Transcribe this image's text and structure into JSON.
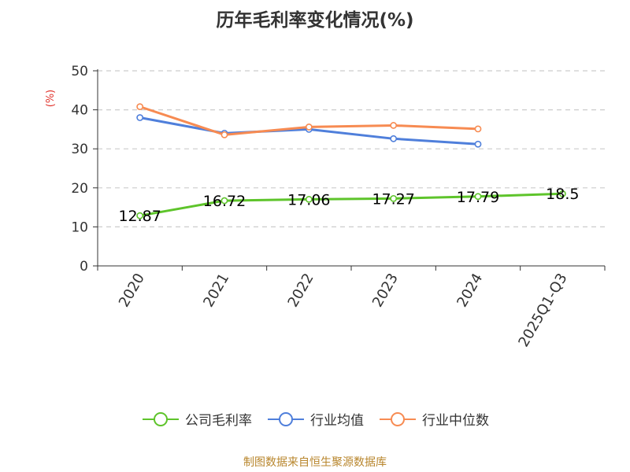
{
  "chart_data": {
    "type": "line",
    "title": "历年毛利率变化情况(%)",
    "ylabel": "(%)",
    "xlabel": "",
    "categories": [
      "2020",
      "2021",
      "2022",
      "2023",
      "2024",
      "2025Q1-Q3"
    ],
    "ylim": [
      0,
      50
    ],
    "yticks": [
      0,
      10,
      20,
      30,
      40,
      50
    ],
    "grid": true,
    "legend_position": "bottom",
    "series": [
      {
        "name": "公司毛利率",
        "color": "#5ec42b",
        "values": [
          12.87,
          16.72,
          17.06,
          17.27,
          17.79,
          18.5
        ],
        "data_labels": [
          "12.87",
          "16.72",
          "17.06",
          "17.27",
          "17.79",
          "18.5"
        ]
      },
      {
        "name": "行业均值",
        "color": "#4f7fdb",
        "values": [
          38.0,
          34.0,
          35.0,
          32.6,
          31.2,
          null
        ]
      },
      {
        "name": "行业中位数",
        "color": "#f78b52",
        "values": [
          40.8,
          33.6,
          35.6,
          36.0,
          35.1,
          null
        ]
      }
    ]
  },
  "source": "制图数据来自恒生聚源数据库"
}
